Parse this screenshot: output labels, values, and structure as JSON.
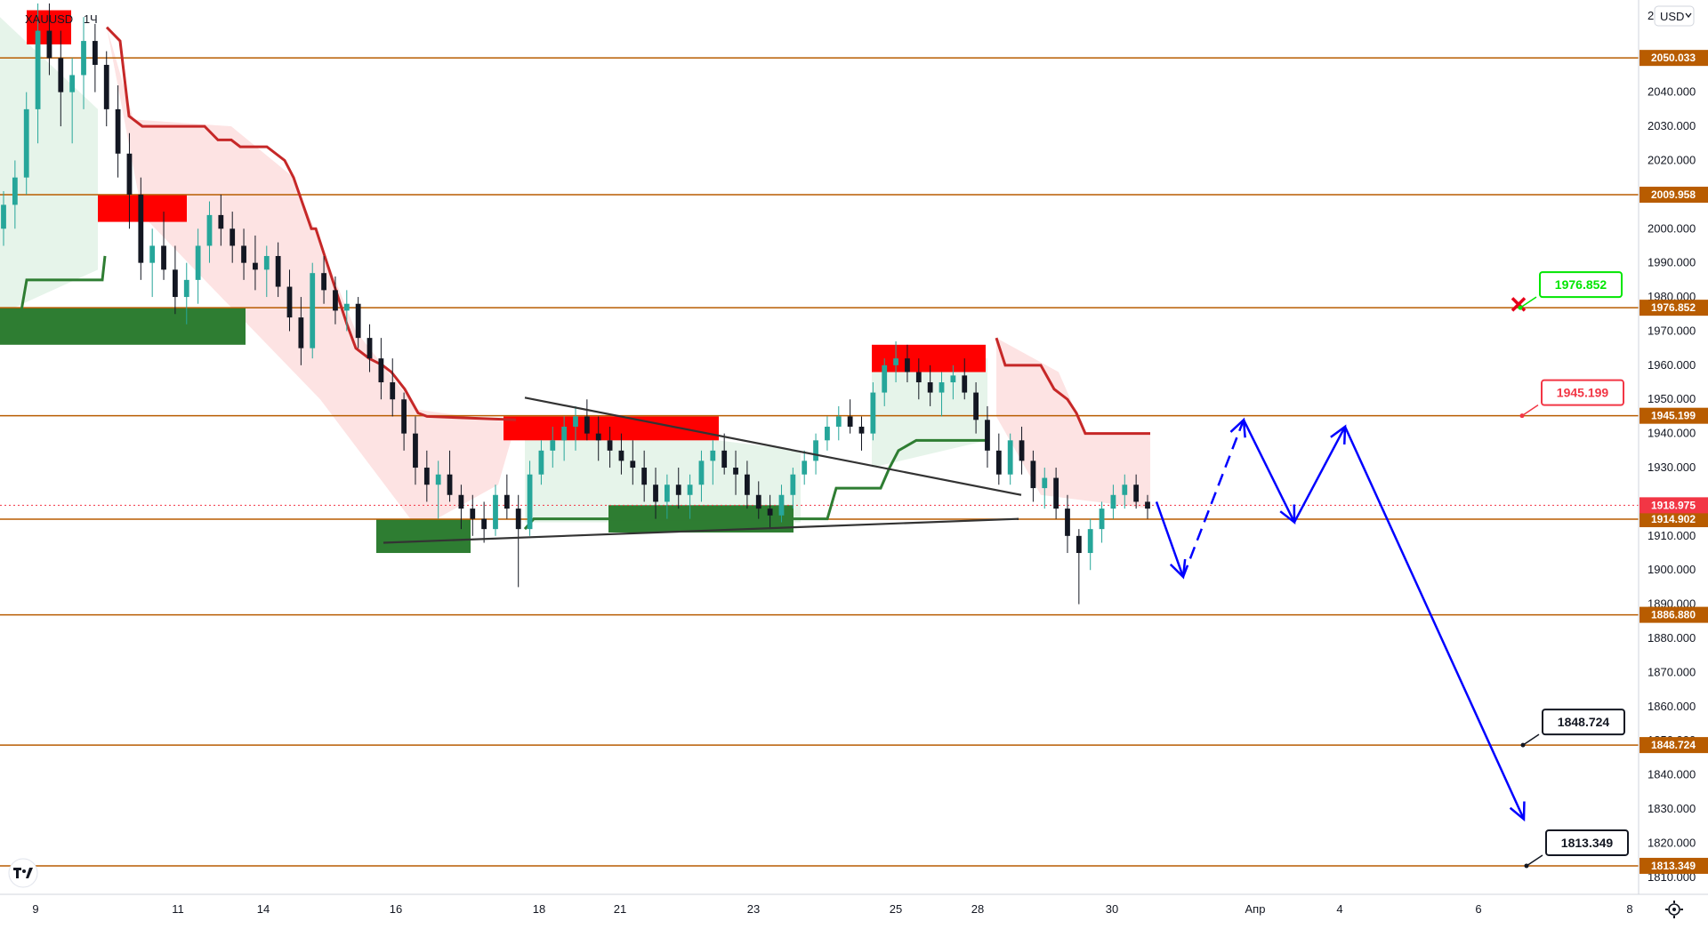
{
  "header": {
    "symbol": "XAUUSD",
    "interval": "1Ч",
    "currency_button": "USD"
  },
  "colors": {
    "level_line": "#b85c00",
    "level_label_bg": "#b85c00",
    "current_price_bg": "#f23645",
    "candle_up": "#26a69a",
    "candle_down": "#131722",
    "supply_zone": "#ff0000",
    "demand_zone": "#2e7d32",
    "trail_red": "#c62828",
    "trail_green": "#2e7d32",
    "fill_red": "#fde3e3",
    "fill_green": "#e6f4ea",
    "trendline": "#333333",
    "projection": "#0000ff",
    "callout_green": "#00e600",
    "callout_red": "#f23645",
    "callout_black": "#131722",
    "invalidate_marker": "#e6001a"
  },
  "icons": {
    "logo": "tradingview-logo-icon",
    "settings": "gear-icon",
    "invalidate": "x-mark-icon"
  },
  "chart_data": {
    "type": "candlestick",
    "ylim": [
      1805,
      2067
    ],
    "y_axis_ticks": [
      "1810.000",
      "1820.000",
      "1830.000",
      "1840.000",
      "1850.000",
      "1860.000",
      "1870.000",
      "1880.000",
      "1890.000",
      "1900.000",
      "1910.000",
      "1920.000",
      "1930.000",
      "1940.000",
      "1950.000",
      "1960.000",
      "1970.000",
      "1980.000",
      "1990.000",
      "2000.000",
      "2010.000",
      "2020.000",
      "2030.000",
      "2040.000"
    ],
    "y_axis_top_label": "2",
    "x_axis_ticks": [
      "9",
      "11",
      "14",
      "16",
      "18",
      "21",
      "23",
      "25",
      "28",
      "30",
      "Апр",
      "4",
      "6",
      "8"
    ],
    "current_price": "1918.975",
    "horizontal_levels": [
      "2050.033",
      "2009.958",
      "1976.852",
      "1945.199",
      "1914.902",
      "1886.880",
      "1848.724",
      "1813.349"
    ],
    "callouts": [
      {
        "text": "1976.852",
        "style": "green"
      },
      {
        "text": "1945.199",
        "style": "red"
      },
      {
        "text": "1848.724",
        "style": "black"
      },
      {
        "text": "1813.349",
        "style": "black"
      }
    ],
    "supply_zones": [
      {
        "from": "2064",
        "to": "2054"
      },
      {
        "from": "2010",
        "to": "2002"
      },
      {
        "from": "1945",
        "to": "1938"
      },
      {
        "from": "1966",
        "to": "1958"
      }
    ],
    "demand_zones": [
      {
        "from": "1977",
        "to": "1966"
      },
      {
        "from": "1915",
        "to": "1905"
      },
      {
        "from": "1919",
        "to": "1911"
      }
    ],
    "projection_path": [
      {
        "label": "down",
        "price": "1898"
      },
      {
        "label": "up",
        "price": "1944"
      },
      {
        "label": "down",
        "price": "1914"
      },
      {
        "label": "up",
        "price": "1942"
      },
      {
        "label": "down",
        "price": "1827"
      }
    ],
    "candles": [
      [
        2000,
        2011,
        1995,
        2007
      ],
      [
        2007,
        2020,
        2000,
        2015
      ],
      [
        2015,
        2040,
        2010,
        2035
      ],
      [
        2035,
        2066,
        2025,
        2058
      ],
      [
        2058,
        2066,
        2045,
        2050
      ],
      [
        2050,
        2058,
        2030,
        2040
      ],
      [
        2040,
        2050,
        2025,
        2045
      ],
      [
        2045,
        2062,
        2035,
        2055
      ],
      [
        2055,
        2060,
        2040,
        2048
      ],
      [
        2048,
        2052,
        2030,
        2035
      ],
      [
        2035,
        2042,
        2015,
        2022
      ],
      [
        2022,
        2028,
        2000,
        2010
      ],
      [
        2010,
        2015,
        1985,
        1990
      ],
      [
        1990,
        2000,
        1980,
        1995
      ],
      [
        1995,
        2005,
        1985,
        1988
      ],
      [
        1988,
        1995,
        1975,
        1980
      ],
      [
        1980,
        1990,
        1972,
        1985
      ],
      [
        1985,
        2000,
        1978,
        1995
      ],
      [
        1995,
        2008,
        1990,
        2004
      ],
      [
        2004,
        2010,
        1995,
        2000
      ],
      [
        2000,
        2005,
        1990,
        1995
      ],
      [
        1995,
        2000,
        1985,
        1990
      ],
      [
        1990,
        1998,
        1982,
        1988
      ],
      [
        1988,
        1995,
        1980,
        1992
      ],
      [
        1992,
        1996,
        1980,
        1983
      ],
      [
        1983,
        1988,
        1970,
        1974
      ],
      [
        1974,
        1980,
        1960,
        1965
      ],
      [
        1965,
        1990,
        1962,
        1987
      ],
      [
        1987,
        1992,
        1978,
        1982
      ],
      [
        1982,
        1986,
        1972,
        1976
      ],
      [
        1976,
        1982,
        1970,
        1978
      ],
      [
        1978,
        1980,
        1965,
        1968
      ],
      [
        1968,
        1972,
        1958,
        1962
      ],
      [
        1962,
        1968,
        1950,
        1955
      ],
      [
        1955,
        1962,
        1945,
        1950
      ],
      [
        1950,
        1952,
        1935,
        1940
      ],
      [
        1940,
        1945,
        1925,
        1930
      ],
      [
        1930,
        1935,
        1920,
        1925
      ],
      [
        1925,
        1932,
        1915,
        1928
      ],
      [
        1928,
        1935,
        1920,
        1922
      ],
      [
        1922,
        1925,
        1912,
        1918
      ],
      [
        1918,
        1922,
        1910,
        1915
      ],
      [
        1915,
        1920,
        1908,
        1912
      ],
      [
        1912,
        1925,
        1910,
        1922
      ],
      [
        1922,
        1928,
        1915,
        1918
      ],
      [
        1918,
        1922,
        1895,
        1912
      ],
      [
        1912,
        1932,
        1910,
        1928
      ],
      [
        1928,
        1938,
        1925,
        1935
      ],
      [
        1935,
        1942,
        1930,
        1938
      ],
      [
        1938,
        1945,
        1932,
        1942
      ],
      [
        1942,
        1948,
        1935,
        1945
      ],
      [
        1945,
        1950,
        1938,
        1940
      ],
      [
        1940,
        1945,
        1932,
        1938
      ],
      [
        1938,
        1942,
        1930,
        1935
      ],
      [
        1935,
        1940,
        1928,
        1932
      ],
      [
        1932,
        1938,
        1925,
        1930
      ],
      [
        1930,
        1935,
        1920,
        1925
      ],
      [
        1925,
        1930,
        1915,
        1920
      ],
      [
        1920,
        1928,
        1915,
        1925
      ],
      [
        1925,
        1930,
        1918,
        1922
      ],
      [
        1922,
        1928,
        1915,
        1925
      ],
      [
        1925,
        1935,
        1920,
        1932
      ],
      [
        1932,
        1938,
        1925,
        1935
      ],
      [
        1935,
        1940,
        1928,
        1930
      ],
      [
        1930,
        1935,
        1922,
        1928
      ],
      [
        1928,
        1932,
        1918,
        1922
      ],
      [
        1922,
        1926,
        1915,
        1918
      ],
      [
        1918,
        1922,
        1912,
        1916
      ],
      [
        1916,
        1925,
        1914,
        1922
      ],
      [
        1922,
        1930,
        1918,
        1928
      ],
      [
        1928,
        1935,
        1925,
        1932
      ],
      [
        1932,
        1940,
        1928,
        1938
      ],
      [
        1938,
        1945,
        1935,
        1942
      ],
      [
        1942,
        1948,
        1938,
        1945
      ],
      [
        1945,
        1950,
        1940,
        1942
      ],
      [
        1942,
        1945,
        1935,
        1940
      ],
      [
        1940,
        1955,
        1938,
        1952
      ],
      [
        1952,
        1962,
        1948,
        1960
      ],
      [
        1960,
        1967,
        1955,
        1962
      ],
      [
        1962,
        1966,
        1955,
        1958
      ],
      [
        1958,
        1962,
        1950,
        1955
      ],
      [
        1955,
        1960,
        1948,
        1952
      ],
      [
        1952,
        1958,
        1945,
        1955
      ],
      [
        1955,
        1960,
        1950,
        1957
      ],
      [
        1957,
        1962,
        1950,
        1952
      ],
      [
        1952,
        1955,
        1940,
        1944
      ],
      [
        1944,
        1948,
        1930,
        1935
      ],
      [
        1935,
        1940,
        1925,
        1928
      ],
      [
        1928,
        1940,
        1925,
        1938
      ],
      [
        1938,
        1942,
        1928,
        1932
      ],
      [
        1932,
        1935,
        1920,
        1924
      ],
      [
        1924,
        1930,
        1918,
        1927
      ],
      [
        1927,
        1930,
        1915,
        1918
      ],
      [
        1918,
        1922,
        1905,
        1910
      ],
      [
        1910,
        1912,
        1890,
        1905
      ],
      [
        1905,
        1915,
        1900,
        1912
      ],
      [
        1912,
        1920,
        1908,
        1918
      ],
      [
        1918,
        1925,
        1915,
        1922
      ],
      [
        1922,
        1928,
        1918,
        1925
      ],
      [
        1925,
        1928,
        1918,
        1920
      ],
      [
        1920,
        1922,
        1915,
        1918
      ]
    ]
  }
}
